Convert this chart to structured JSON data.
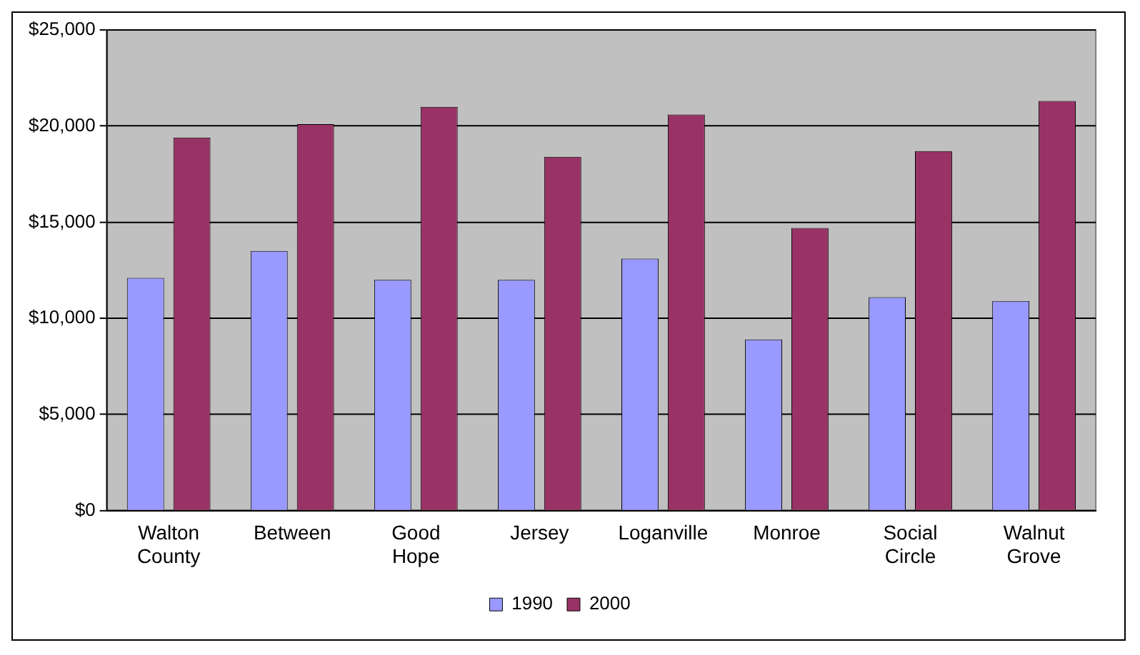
{
  "chart_data": {
    "type": "bar",
    "categories": [
      "Walton County",
      "Between",
      "Good Hope",
      "Jersey",
      "Loganville",
      "Monroe",
      "Social Circle",
      "Walnut Grove"
    ],
    "series": [
      {
        "name": "1990",
        "color": "#9999ff",
        "values": [
          12100,
          13500,
          12000,
          12000,
          13100,
          8900,
          11100,
          10900
        ]
      },
      {
        "name": "2000",
        "color": "#993366",
        "values": [
          19400,
          20100,
          21000,
          18400,
          20600,
          14700,
          18700,
          21300
        ]
      }
    ],
    "ylim": [
      0,
      25000
    ],
    "yticks": [
      {
        "value": 0,
        "label": "$0"
      },
      {
        "value": 5000,
        "label": "$5,000"
      },
      {
        "value": 10000,
        "label": "$10,000"
      },
      {
        "value": 15000,
        "label": "$15,000"
      },
      {
        "value": 20000,
        "label": "$20,000"
      },
      {
        "value": 25000,
        "label": "$25,000"
      }
    ],
    "grid": "y",
    "legend": "bottom"
  }
}
